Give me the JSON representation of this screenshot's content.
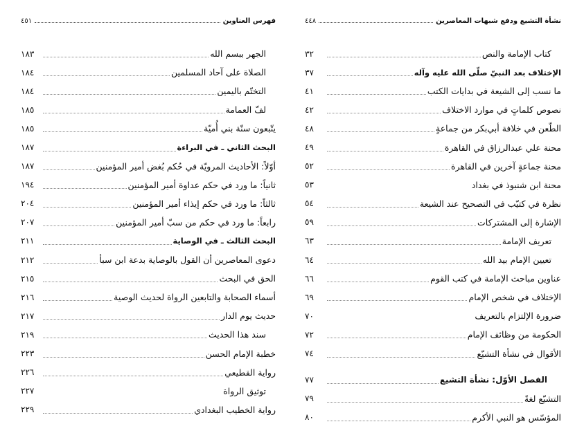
{
  "right_page": {
    "header_title": "نشأة التشيع ودفع شبهات المعاصرين",
    "header_page": "٤٤٨",
    "entries": [
      {
        "title": "كتاب الإمامة والنص",
        "page": "٣٢",
        "style": "indent",
        "leader": true
      },
      {
        "title": "الإختلاف بعد النبيّ صلّى الله عليه وآله",
        "page": "٣٧",
        "style": "bold",
        "leader": true
      },
      {
        "title": "ما نسب إلى الشيعة في بدايات الكتب",
        "page": "٤١",
        "style": "",
        "leader": true
      },
      {
        "title": "نصوص كلماتٍ في موارد الاختلاف",
        "page": "٤٢",
        "style": "",
        "leader": true
      },
      {
        "title": "الطّعن في خلافة أبي‌بكر من جماعةٍ",
        "page": "٤٨",
        "style": "",
        "leader": true
      },
      {
        "title": "محنة علي عبدالرزاق في القاهرة",
        "page": "٤٩",
        "style": "",
        "leader": true
      },
      {
        "title": "محنة جماعةٍ آخرين في القاهرة",
        "page": "٥٢",
        "style": "",
        "leader": true
      },
      {
        "title": "محنة ابن شنبوذ في بغداد",
        "page": "٥٣",
        "style": "",
        "leader": false
      },
      {
        "title": "نظرة في كتيّب في التصحيح عند الشيعة",
        "page": "٥٤",
        "style": "",
        "leader": true
      },
      {
        "title": "الإشارة إلى المشتركات",
        "page": "٥٩",
        "style": "",
        "leader": true
      },
      {
        "title": "تعريف الإمامة",
        "page": "٦٣",
        "style": "indent",
        "leader": true
      },
      {
        "title": "تعيين الإمام بيد الله",
        "page": "٦٤",
        "style": "indent",
        "leader": true
      },
      {
        "title": "عناوين مباحث الإمامة في كتب القوم",
        "page": "٦٦",
        "style": "",
        "leader": true
      },
      {
        "title": "الإختلاف في شخص الإمام",
        "page": "٦٩",
        "style": "",
        "leader": true
      },
      {
        "title": "ضرورة الإلتزام بالتعريف",
        "page": "٧٠",
        "style": "",
        "leader": false
      },
      {
        "title": "الحكومة من وظائف الإمام",
        "page": "٧٢",
        "style": "",
        "leader": true
      },
      {
        "title": "الأقوال في نشأة التشيّع",
        "page": "٧٤",
        "style": "",
        "leader": true
      },
      {
        "title": "الفصل الأوّل: نشأة التشيع",
        "page": "٧٧",
        "style": "chapter",
        "leader": true
      },
      {
        "title": "التشيّع لغةً",
        "page": "٧٩",
        "style": "",
        "leader": true
      },
      {
        "title": "المؤسّس هو النبي الأكرم",
        "page": "٨٠",
        "style": "",
        "leader": true
      }
    ]
  },
  "left_page": {
    "header_title": "فهرس العناوين",
    "header_page": "٤٥١",
    "entries": [
      {
        "title": "الجهر ببسم الله",
        "page": "١٨٣",
        "style": "indent",
        "leader": true
      },
      {
        "title": "الصلاة على آحاد المسلمين",
        "page": "١٨٤",
        "style": "indent",
        "leader": true
      },
      {
        "title": "التختّم باليمين",
        "page": "١٨٤",
        "style": "indent",
        "leader": true
      },
      {
        "title": "لفّ العمامة",
        "page": "١٨٥",
        "style": "indent",
        "leader": true
      },
      {
        "title": "يتّبعون سنّة بني أُميّة",
        "page": "١٨٥",
        "style": "",
        "leader": true
      },
      {
        "title": "البحث الثاني ـ في البراءة",
        "page": "١٨٧",
        "style": "bold",
        "leader": true
      },
      {
        "title": "أوّلاً: الأحاديث المرويّة في حُكم بُغض أمير المؤمنين",
        "page": "١٨٧",
        "style": "",
        "leader": true
      },
      {
        "title": "ثانياً: ما ورد في حكم عداوة أمير المؤمنين",
        "page": "١٩٤",
        "style": "",
        "leader": true
      },
      {
        "title": "ثالثاً: ما ورد في حكم إيذاء أمير المؤمنين",
        "page": "٢٠٤",
        "style": "",
        "leader": true
      },
      {
        "title": "رابعاً: ما ورد في حكم من سبّ أمير المؤمنين",
        "page": "٢٠٧",
        "style": "",
        "leader": true
      },
      {
        "title": "البحث الثالث ـ في الوصاية",
        "page": "٢١١",
        "style": "bold",
        "leader": true
      },
      {
        "title": "دعوى المعاصرين أن القول بالوصاية بدعة ابن سبأ",
        "page": "٢١٢",
        "style": "",
        "leader": true
      },
      {
        "title": "الحق في البحث",
        "page": "٢١٥",
        "style": "",
        "leader": true
      },
      {
        "title": "أسماء الصحابة والتابعين الرواة لحديث الوصية",
        "page": "٢١٦",
        "style": "",
        "leader": true
      },
      {
        "title": "حديث يوم الدار",
        "page": "٢١٧",
        "style": "",
        "leader": true
      },
      {
        "title": "سند هذا الحديث",
        "page": "٢١٩",
        "style": "indent",
        "leader": true
      },
      {
        "title": "خطبة الإمام الحسن",
        "page": "٢٢٣",
        "style": "",
        "leader": true
      },
      {
        "title": "رواية القطيعي",
        "page": "٢٢٦",
        "style": "",
        "leader": true
      },
      {
        "title": "توثيق الرواة",
        "page": "٢٢٧",
        "style": "indent",
        "leader": false
      },
      {
        "title": "رواية الخطيب البغدادي",
        "page": "٢٢٩",
        "style": "",
        "leader": true
      }
    ]
  }
}
